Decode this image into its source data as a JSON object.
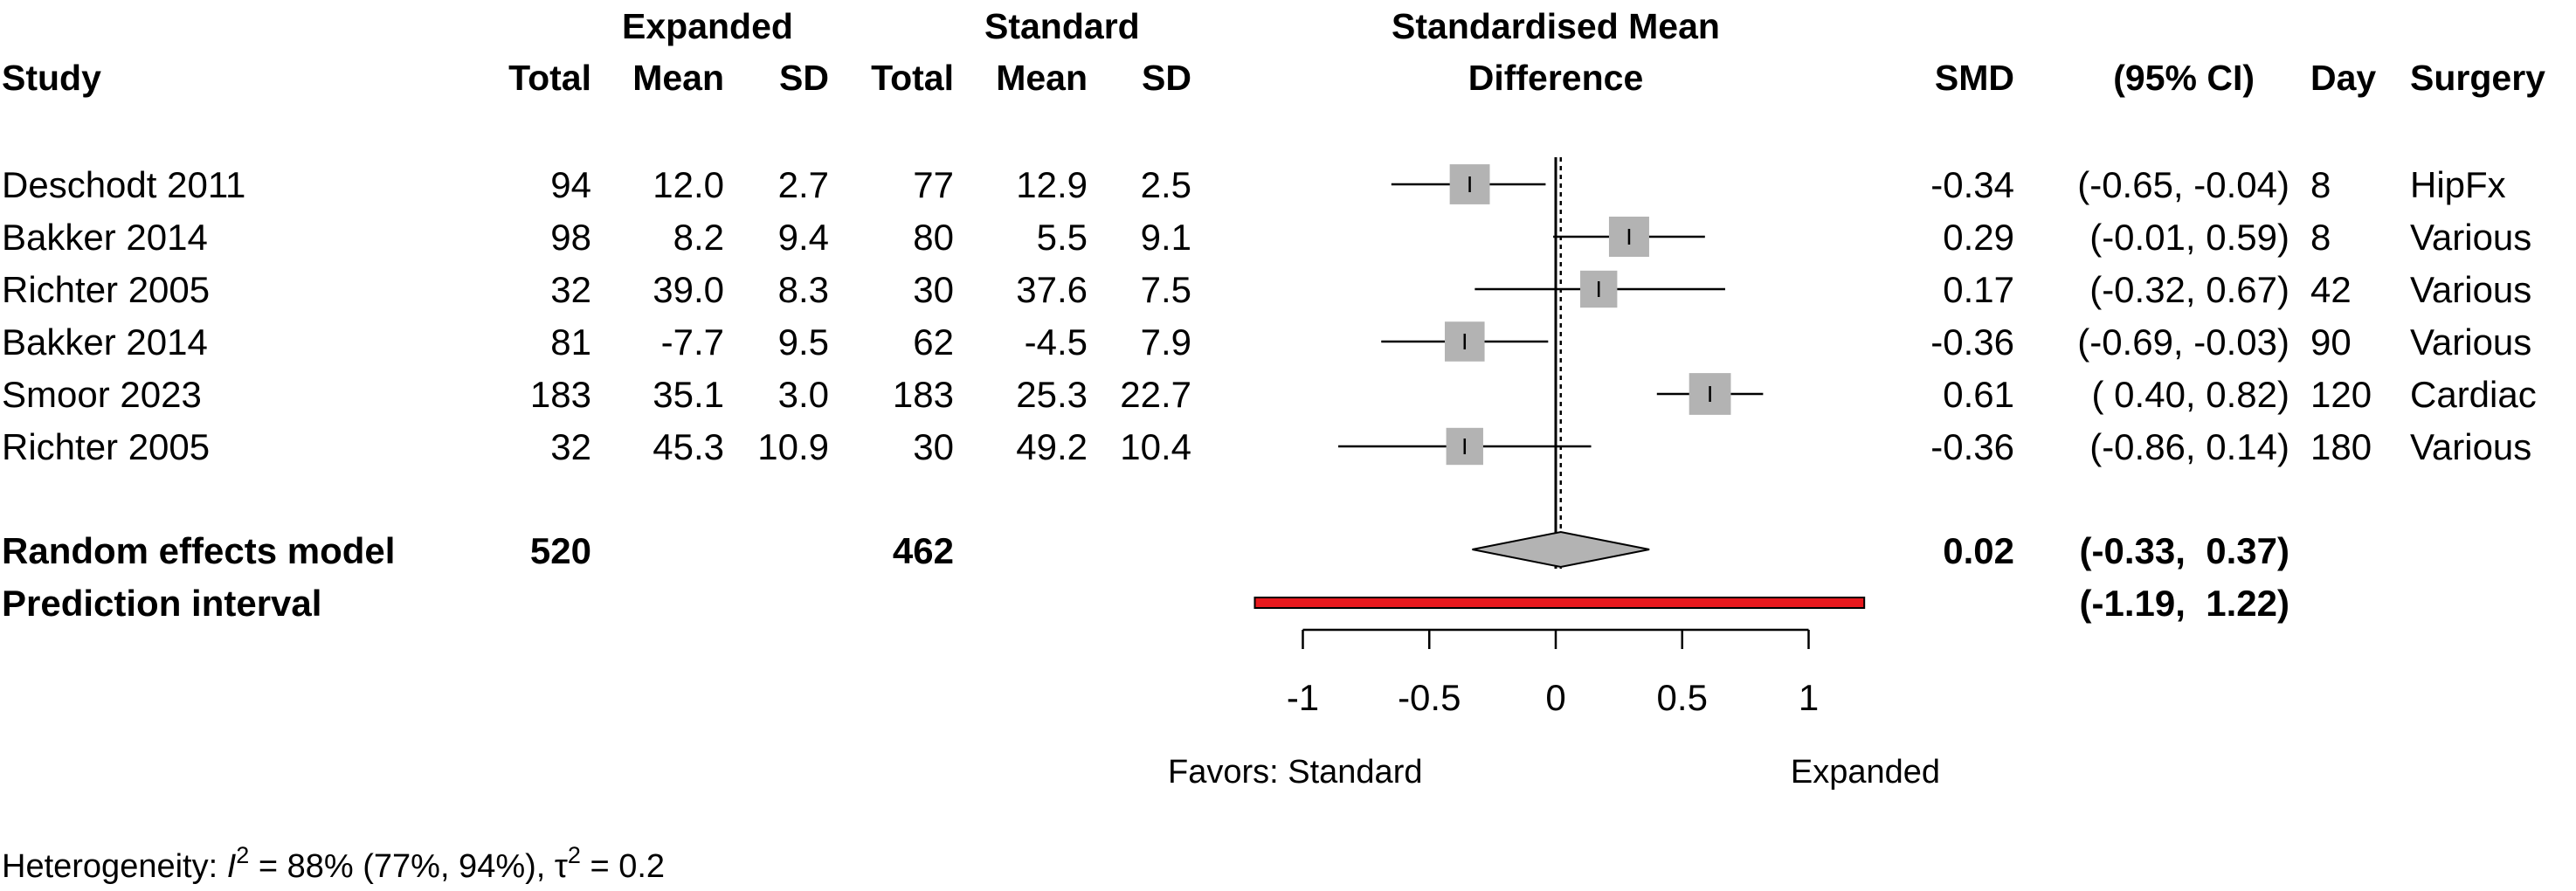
{
  "chart_data": {
    "type": "forest",
    "headers": {
      "study": "Study",
      "expanded_group": "Expanded",
      "standard_group": "Standard",
      "total": "Total",
      "mean": "Mean",
      "sd": "SD",
      "plot_title_line1": "Standardised Mean",
      "plot_title_line2": "Difference",
      "smd": "SMD",
      "ci": "(95% CI)",
      "day": "Day",
      "surgery": "Surgery"
    },
    "studies": [
      {
        "name": "Deschodt 2011",
        "exp_total": 94,
        "exp_mean": "12.0",
        "exp_sd": "2.7",
        "std_total": 77,
        "std_mean": "12.9",
        "std_sd": "2.5",
        "smd": -0.34,
        "lower": -0.65,
        "upper": -0.04,
        "smd_label": "-0.34",
        "ci_label": "(-0.65, -0.04)",
        "day": "8",
        "surgery": "HipFx",
        "weight": 16.4
      },
      {
        "name": "Bakker 2014",
        "exp_total": 98,
        "exp_mean": "8.2",
        "exp_sd": "9.4",
        "std_total": 80,
        "std_mean": "5.5",
        "std_sd": "9.1",
        "smd": 0.29,
        "lower": -0.01,
        "upper": 0.59,
        "smd_label": "0.29",
        "ci_label": "(-0.01,  0.59)",
        "day": "8",
        "surgery": "Various",
        "weight": 16.5
      },
      {
        "name": "Richter 2005",
        "exp_total": 32,
        "exp_mean": "39.0",
        "exp_sd": "8.3",
        "std_total": 30,
        "std_mean": "37.6",
        "std_sd": "7.5",
        "smd": 0.17,
        "lower": -0.32,
        "upper": 0.67,
        "smd_label": "0.17",
        "ci_label": "(-0.32,  0.67)",
        "day": "42",
        "surgery": "Various",
        "weight": 14.0
      },
      {
        "name": "Bakker 2014",
        "exp_total": 81,
        "exp_mean": "-7.7",
        "exp_sd": "9.5",
        "std_total": 62,
        "std_mean": "-4.5",
        "std_sd": "7.9",
        "smd": -0.36,
        "lower": -0.69,
        "upper": -0.03,
        "smd_label": "-0.36",
        "ci_label": "(-0.69, -0.03)",
        "day": "90",
        "surgery": "Various",
        "weight": 16.2
      },
      {
        "name": "Smoor 2023",
        "exp_total": 183,
        "exp_mean": "35.1",
        "exp_sd": "3.0",
        "std_total": 183,
        "std_mean": "25.3",
        "std_sd": "22.7",
        "smd": 0.61,
        "lower": 0.4,
        "upper": 0.82,
        "smd_label": "0.61",
        "ci_label": "( 0.40,  0.82)",
        "day": "120",
        "surgery": "Cardiac",
        "weight": 17.8
      },
      {
        "name": "Richter 2005",
        "exp_total": 32,
        "exp_mean": "45.3",
        "exp_sd": "10.9",
        "std_total": 30,
        "std_mean": "49.2",
        "std_sd": "10.4",
        "smd": -0.36,
        "lower": -0.86,
        "upper": 0.14,
        "smd_label": "-0.36",
        "ci_label": "(-0.86,  0.14)",
        "day": "180",
        "surgery": "Various",
        "weight": 14.0
      }
    ],
    "pooled": {
      "label": "Random effects model",
      "exp_total": "520",
      "std_total": "462",
      "smd": 0.02,
      "lower": -0.33,
      "upper": 0.37,
      "smd_label": "0.02",
      "ci_label": "(-0.33,  0.37)"
    },
    "prediction": {
      "label": "Prediction interval",
      "lower": -1.19,
      "upper": 1.22,
      "ci_label": "(-1.19,  1.22)"
    },
    "x_axis": {
      "ticks": [
        -1,
        -0.5,
        0,
        0.5,
        1
      ],
      "tick_labels": [
        "-1",
        "-0.5",
        "0",
        "0.5",
        "1"
      ],
      "favors_left": "Favors: Standard",
      "favors_right": "Expanded"
    },
    "heterogeneity": {
      "prefix": "Heterogeneity: ",
      "i2_symbol": "I",
      "i2_text": " = 88% (77%, 94%), ",
      "tau_symbol": "τ",
      "tau_text": " = 0.2",
      "superscript": "2"
    },
    "colors": {
      "square": "#b3b3b3",
      "diamond": "#b3b3b3",
      "prediction_fill": "#e8191d",
      "line": "#000000"
    }
  }
}
